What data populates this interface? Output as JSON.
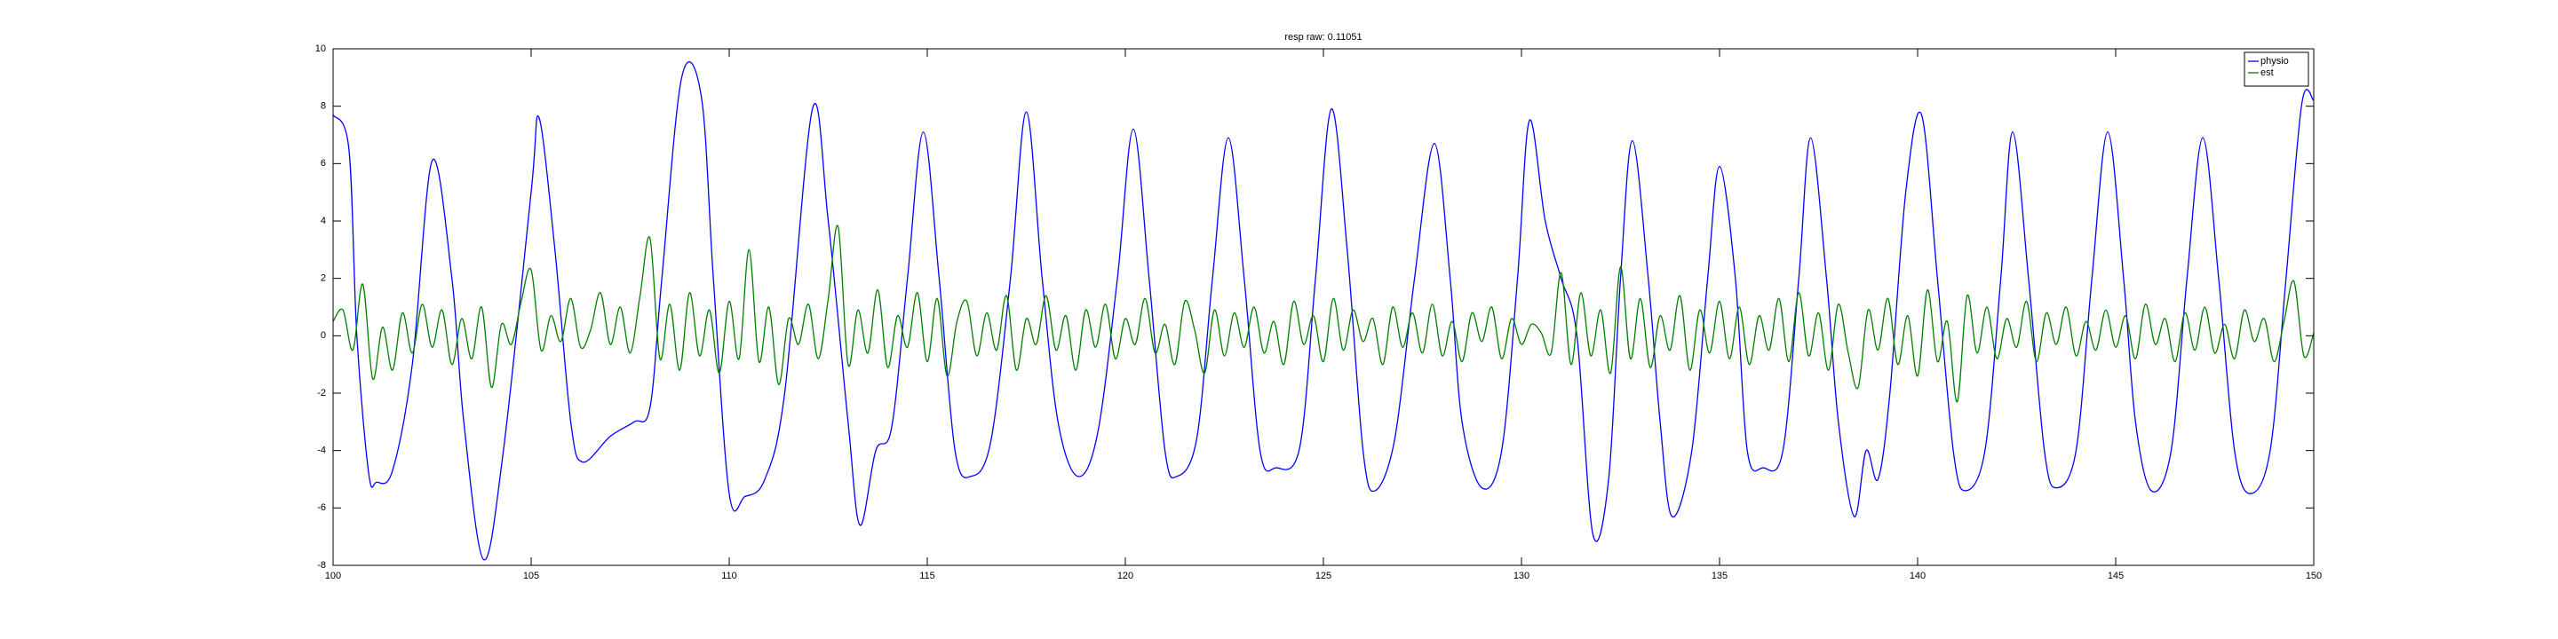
{
  "chart_data": {
    "type": "line",
    "title": "resp raw: 0.11051",
    "xlim": [
      100,
      150
    ],
    "ylim": [
      -8,
      10
    ],
    "xticks": [
      100,
      105,
      110,
      115,
      120,
      125,
      130,
      135,
      140,
      145,
      150
    ],
    "yticks": [
      -8,
      -6,
      -4,
      -2,
      0,
      2,
      4,
      6,
      8,
      10
    ],
    "legend": "northeast",
    "series": [
      {
        "name": "physio",
        "color": "#0000ff",
        "x": [
          100,
          100.4,
          100.6,
          100.9,
          101.1,
          101.5,
          102,
          102.5,
          103,
          103.3,
          103.8,
          104.3,
          105,
          105.2,
          105.6,
          106,
          106.3,
          107,
          107.6,
          108,
          108.3,
          108.8,
          109.3,
          109.6,
          110,
          110.4,
          110.9,
          111.4,
          112.1,
          112.5,
          113,
          113.3,
          113.7,
          114.1,
          114.5,
          114.9,
          115.3,
          115.7,
          116.1,
          116.6,
          117.1,
          117.5,
          117.9,
          118.3,
          118.8,
          119.3,
          119.8,
          120.2,
          120.6,
          121,
          121.3,
          121.8,
          122.2,
          122.6,
          123,
          123.4,
          123.8,
          124.4,
          124.8,
          125.2,
          125.6,
          126,
          126.3,
          126.8,
          127.3,
          127.8,
          128.2,
          128.5,
          129,
          129.5,
          129.9,
          130.2,
          130.6,
          131,
          131.4,
          131.8,
          132.2,
          132.5,
          132.8,
          133.2,
          133.5,
          133.8,
          134.3,
          134.7,
          135,
          135.4,
          135.7,
          136.1,
          136.6,
          137,
          137.3,
          137.7,
          138,
          138.4,
          138.7,
          139,
          139.3,
          139.7,
          140.1,
          140.5,
          140.9,
          141.2,
          141.7,
          142.1,
          142.4,
          142.8,
          143.2,
          143.5,
          144,
          144.4,
          144.8,
          145.2,
          145.5,
          145.9,
          146.4,
          146.8,
          147.2,
          147.6,
          148,
          148.4,
          148.9,
          149.3,
          149.7,
          150
        ],
        "values": [
          7.7,
          6.5,
          0,
          -4.8,
          -5.1,
          -4.7,
          -1,
          6.1,
          2,
          -3,
          -7.8,
          -4,
          5,
          7.6,
          3,
          -3,
          -4.4,
          -3.5,
          -3,
          -2.5,
          2,
          9,
          8.3,
          2,
          -5.5,
          -5.6,
          -5,
          -2,
          7.9,
          4,
          -3,
          -6.6,
          -4,
          -3.2,
          2,
          7.1,
          2,
          -4,
          -4.9,
          -3.7,
          2,
          7.8,
          2,
          -3,
          -4.9,
          -3.4,
          2,
          7.2,
          2,
          -4,
          -4.9,
          -3.6,
          2,
          6.9,
          2,
          -4,
          -4.6,
          -3.9,
          2,
          7.9,
          3,
          -4,
          -5.4,
          -3.6,
          2,
          6.7,
          2,
          -3,
          -5.3,
          -4,
          2,
          7.5,
          4,
          2,
          0,
          -6.9,
          -5,
          2,
          6.8,
          2,
          -3,
          -6.3,
          -4,
          2,
          5.9,
          2,
          -4,
          -4.6,
          -4,
          2,
          6.9,
          2,
          -3,
          -6.3,
          -4,
          -5,
          -2,
          5,
          7.7,
          2,
          -4,
          -5.4,
          -4,
          2,
          7.1,
          2,
          -4,
          -5.3,
          -4,
          2,
          7.1,
          2,
          -3,
          -5.4,
          -4,
          2,
          6.9,
          2,
          -4,
          -5.5,
          -4,
          2,
          8.1,
          8.2
        ]
      },
      {
        "name": "est",
        "color": "#008000",
        "x": [
          100,
          100.25,
          100.5,
          100.75,
          101,
          101.25,
          101.5,
          101.75,
          102,
          102.25,
          102.5,
          102.75,
          103,
          103.25,
          103.5,
          103.75,
          104,
          104.25,
          104.5,
          104.75,
          105,
          105.25,
          105.5,
          105.75,
          106,
          106.25,
          106.5,
          106.75,
          107,
          107.25,
          107.5,
          107.75,
          108,
          108.25,
          108.5,
          108.75,
          109,
          109.25,
          109.5,
          109.75,
          110,
          110.25,
          110.5,
          110.75,
          111,
          111.25,
          111.5,
          111.75,
          112,
          112.25,
          112.5,
          112.75,
          113,
          113.25,
          113.5,
          113.75,
          114,
          114.25,
          114.5,
          114.75,
          115,
          115.25,
          115.5,
          115.75,
          116,
          116.25,
          116.5,
          116.75,
          117,
          117.25,
          117.5,
          117.75,
          118,
          118.25,
          118.5,
          118.75,
          119,
          119.25,
          119.5,
          119.75,
          120,
          120.25,
          120.5,
          120.75,
          121,
          121.25,
          121.5,
          121.75,
          122,
          122.25,
          122.5,
          122.75,
          123,
          123.25,
          123.5,
          123.75,
          124,
          124.25,
          124.5,
          124.75,
          125,
          125.25,
          125.5,
          125.75,
          126,
          126.25,
          126.5,
          126.75,
          127,
          127.25,
          127.5,
          127.75,
          128,
          128.25,
          128.5,
          128.75,
          129,
          129.25,
          129.5,
          129.75,
          130,
          130.25,
          130.5,
          130.75,
          131,
          131.25,
          131.5,
          131.75,
          132,
          132.25,
          132.5,
          132.75,
          133,
          133.25,
          133.5,
          133.75,
          134,
          134.25,
          134.5,
          134.75,
          135,
          135.25,
          135.5,
          135.75,
          136,
          136.25,
          136.5,
          136.75,
          137,
          137.25,
          137.5,
          137.75,
          138,
          138.25,
          138.5,
          138.75,
          139,
          139.25,
          139.5,
          139.75,
          140,
          140.25,
          140.5,
          140.75,
          141,
          141.25,
          141.5,
          141.75,
          142,
          142.25,
          142.5,
          142.75,
          143,
          143.25,
          143.5,
          143.75,
          144,
          144.25,
          144.5,
          144.75,
          145,
          145.25,
          145.5,
          145.75,
          146,
          146.25,
          146.5,
          146.75,
          147,
          147.25,
          147.5,
          147.75,
          148,
          148.25,
          148.5,
          148.75,
          149,
          149.25,
          149.5,
          149.75,
          150
        ],
        "values": [
          0.5,
          0.9,
          -0.5,
          1.8,
          -1.5,
          0.3,
          -1.2,
          0.8,
          -0.6,
          1.1,
          -0.4,
          0.9,
          -1.0,
          0.6,
          -0.8,
          1.0,
          -1.8,
          0.4,
          -0.3,
          1.2,
          2.3,
          -0.5,
          0.7,
          -0.2,
          1.3,
          -0.4,
          0.2,
          1.5,
          -0.3,
          1.0,
          -0.6,
          1.4,
          3.4,
          -0.8,
          1.1,
          -1.2,
          1.5,
          -0.7,
          0.9,
          -1.3,
          1.2,
          -0.8,
          3.0,
          -0.9,
          1.0,
          -1.7,
          0.6,
          -0.3,
          1.1,
          -0.8,
          1.3,
          3.8,
          -1.0,
          0.9,
          -0.6,
          1.6,
          -1.1,
          0.7,
          -0.4,
          1.5,
          -0.9,
          1.3,
          -1.4,
          0.5,
          1.2,
          -0.7,
          0.8,
          -0.5,
          1.4,
          -1.2,
          0.6,
          -0.3,
          1.4,
          -0.5,
          0.7,
          -1.2,
          0.9,
          -0.4,
          1.1,
          -0.8,
          0.6,
          -0.3,
          1.3,
          -0.6,
          0.4,
          -1.0,
          1.2,
          0.2,
          -1.3,
          0.9,
          -0.7,
          0.8,
          -0.4,
          1.0,
          -0.6,
          0.5,
          -1.0,
          1.2,
          -0.3,
          0.7,
          -0.9,
          1.3,
          -0.5,
          0.9,
          -0.2,
          0.6,
          -1.0,
          1.0,
          -0.4,
          0.8,
          -0.6,
          1.1,
          -0.7,
          0.5,
          -0.9,
          0.8,
          -0.2,
          1.0,
          -0.8,
          0.6,
          -0.3,
          0.4,
          0.1,
          -0.6,
          2.2,
          -1.0,
          1.5,
          -0.7,
          0.9,
          -1.3,
          2.4,
          -0.8,
          1.3,
          -1.1,
          0.7,
          -0.5,
          1.4,
          -1.2,
          0.9,
          -0.6,
          1.2,
          -0.8,
          1.0,
          -1.0,
          0.7,
          -0.5,
          1.3,
          -0.9,
          1.5,
          -0.7,
          0.8,
          -1.2,
          1.1,
          -0.6,
          -1.8,
          0.9,
          -0.5,
          1.3,
          -1.0,
          0.7,
          -1.4,
          1.6,
          -0.9,
          0.5,
          -2.3,
          1.4,
          -0.6,
          1.0,
          -0.8,
          0.6,
          -0.4,
          1.2,
          -0.9,
          0.8,
          -0.3,
          1.0,
          -0.7,
          0.5,
          -0.5,
          0.9,
          -0.4,
          0.7,
          -0.8,
          1.1,
          -0.3,
          0.6,
          -0.9,
          0.8,
          -0.5,
          1.0,
          -0.6,
          0.4,
          -0.8,
          0.9,
          -0.2,
          0.6,
          -0.9,
          0.5,
          1.9,
          -0.7,
          0.1
        ]
      }
    ]
  }
}
